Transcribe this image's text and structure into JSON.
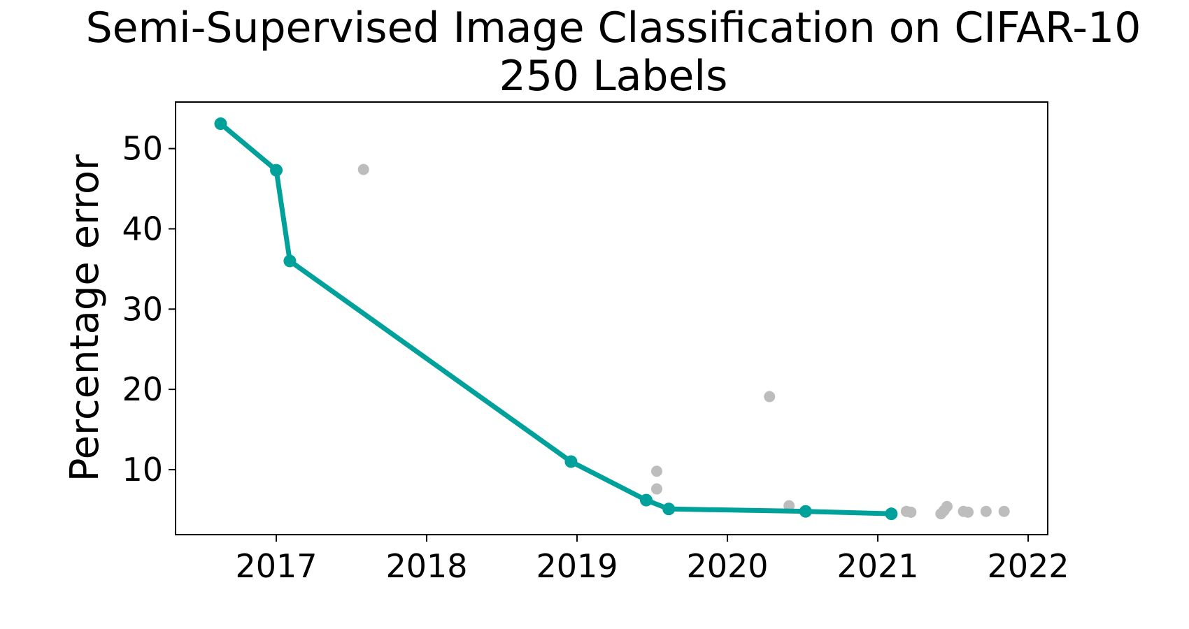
{
  "chart_data": {
    "type": "scatter",
    "title_lines": [
      "Semi-Supervised Image Classification on CIFAR-10",
      "250 Labels"
    ],
    "xlabel": "",
    "ylabel": "Percentage error",
    "xlim": [
      2016.33,
      2022.13
    ],
    "ylim": [
      1.9,
      55.8
    ],
    "x_ticks": [
      2017,
      2018,
      2019,
      2020,
      2021,
      2022
    ],
    "y_ticks": [
      10,
      20,
      30,
      40,
      50
    ],
    "grid": false,
    "legend": "none",
    "colors": {
      "frontier": "#00A19A",
      "other": "#BDBDBD"
    },
    "series": [
      {
        "kind": "frontier",
        "points": [
          [
            2016.63,
            53.1
          ],
          [
            2017.0,
            47.3
          ],
          [
            2017.09,
            36.0
          ],
          [
            2018.96,
            11.0
          ],
          [
            2019.46,
            6.2
          ],
          [
            2019.61,
            5.1
          ],
          [
            2020.52,
            4.8
          ],
          [
            2021.09,
            4.5
          ]
        ]
      },
      {
        "kind": "other",
        "points": [
          [
            2017.58,
            47.4
          ],
          [
            2019.53,
            9.8
          ],
          [
            2019.53,
            7.6
          ],
          [
            2020.28,
            19.1
          ],
          [
            2020.41,
            5.5
          ],
          [
            2021.19,
            4.8
          ],
          [
            2021.22,
            4.7
          ],
          [
            2021.42,
            4.5
          ],
          [
            2021.44,
            4.9
          ],
          [
            2021.46,
            5.4
          ],
          [
            2021.57,
            4.8
          ],
          [
            2021.6,
            4.7
          ],
          [
            2021.72,
            4.8
          ],
          [
            2021.84,
            4.8
          ]
        ]
      }
    ]
  }
}
